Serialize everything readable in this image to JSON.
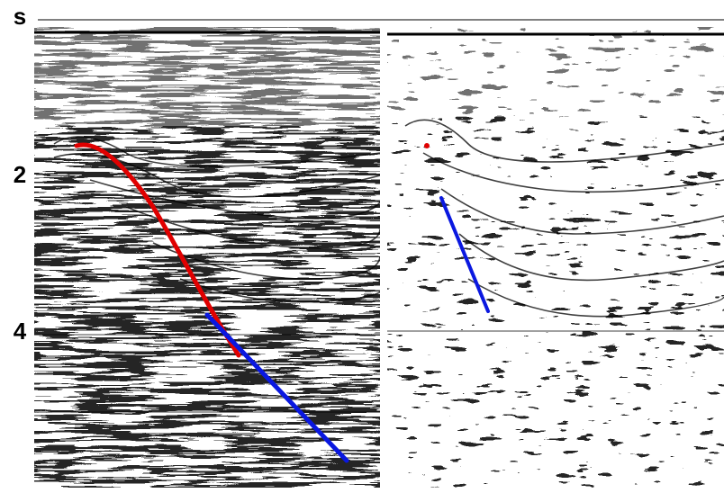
{
  "axis": {
    "unit": "s",
    "ticks": [
      "2",
      "4"
    ]
  }
}
